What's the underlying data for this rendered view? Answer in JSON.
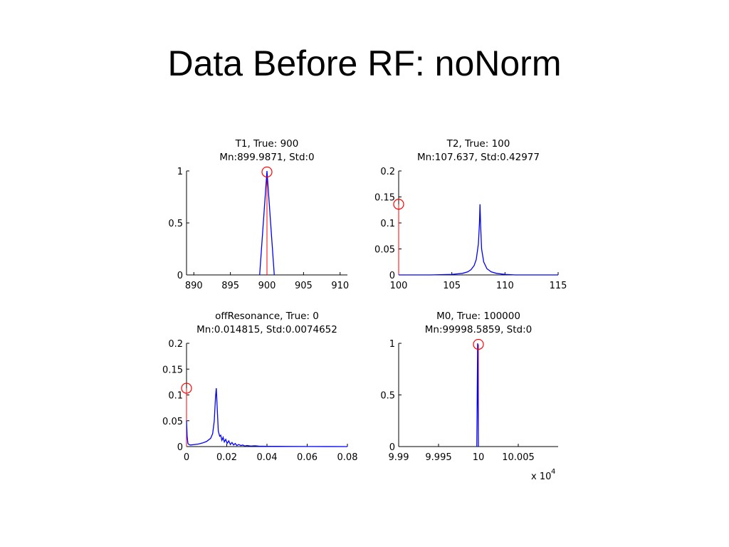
{
  "slide": {
    "title": "Data Before RF: noNorm"
  },
  "colors": {
    "histogram": "#0000ff",
    "true_value": "#ff0000",
    "axes": "#000000"
  },
  "chart_data": [
    {
      "type": "line",
      "title": "T1, True: 900",
      "subtitle": "Mn:899.9871, Std:0",
      "xlim": [
        889,
        911
      ],
      "ylim": [
        0,
        1
      ],
      "xticks": [
        890,
        895,
        900,
        905,
        910
      ],
      "xtick_labels": [
        "890",
        "895",
        "900",
        "905",
        "910"
      ],
      "yticks": [
        0,
        0.5,
        1
      ],
      "ytick_labels": [
        "0",
        "0.5",
        "1"
      ],
      "true_value": 900,
      "marker": {
        "x": 900,
        "y": 0.99
      },
      "series": [
        {
          "x": [
            899,
            900,
            901
          ],
          "y": [
            0,
            1,
            0
          ]
        }
      ],
      "multiplier": ""
    },
    {
      "type": "line",
      "title": "T2, True: 100",
      "subtitle": "Mn:107.637, Std:0.42977",
      "xlim": [
        100,
        115
      ],
      "ylim": [
        0,
        0.2
      ],
      "xticks": [
        100,
        105,
        110,
        115
      ],
      "xtick_labels": [
        "100",
        "105",
        "110",
        "115"
      ],
      "yticks": [
        0,
        0.05,
        0.1,
        0.15,
        0.2
      ],
      "ytick_labels": [
        "0",
        "0.05",
        "0.1",
        "0.15",
        "0.2"
      ],
      "true_value": 100,
      "marker": {
        "x": 100,
        "y": 0.136
      },
      "series": [
        {
          "x": [
            100,
            103,
            104,
            105,
            105.5,
            106,
            106.5,
            106.8,
            107.1,
            107.3,
            107.5,
            107.6,
            107.65,
            107.7,
            107.8,
            108,
            108.3,
            108.7,
            109.2,
            110,
            111,
            115
          ],
          "y": [
            0,
            0,
            0.0005,
            0.001,
            0.002,
            0.003,
            0.006,
            0.01,
            0.018,
            0.03,
            0.06,
            0.1,
            0.136,
            0.1,
            0.05,
            0.025,
            0.012,
            0.006,
            0.003,
            0.001,
            0,
            0
          ]
        }
      ],
      "multiplier": ""
    },
    {
      "type": "line",
      "title": "offResonance, True: 0",
      "subtitle": "Mn:0.014815, Std:0.0074652",
      "xlim": [
        0,
        0.08
      ],
      "ylim": [
        0,
        0.2
      ],
      "xticks": [
        0,
        0.02,
        0.04,
        0.06,
        0.08
      ],
      "xtick_labels": [
        "0",
        "0.02",
        "0.04",
        "0.06",
        "0.08"
      ],
      "yticks": [
        0,
        0.05,
        0.1,
        0.15,
        0.2
      ],
      "ytick_labels": [
        "0",
        "0.05",
        "0.1",
        "0.15",
        "0.2"
      ],
      "true_value": 0,
      "marker": {
        "x": 0,
        "y": 0.113
      },
      "series": [
        {
          "x": [
            0,
            0.0003,
            0.0007,
            0.0012,
            0.002,
            0.004,
            0.006,
            0.008,
            0.01,
            0.012,
            0.013,
            0.0138,
            0.0144,
            0.0148,
            0.0152,
            0.0158,
            0.0165,
            0.017,
            0.0176,
            0.0182,
            0.0188,
            0.0195,
            0.0202,
            0.021,
            0.0218,
            0.0226,
            0.0234,
            0.0242,
            0.025,
            0.026,
            0.027,
            0.028,
            0.029,
            0.03,
            0.032,
            0.034,
            0.036,
            0.04,
            0.045,
            0.05,
            0.06,
            0.07,
            0.08
          ],
          "y": [
            0.05,
            0.02,
            0.006,
            0.004,
            0.003,
            0.004,
            0.005,
            0.007,
            0.01,
            0.016,
            0.025,
            0.05,
            0.095,
            0.113,
            0.08,
            0.03,
            0.02,
            0.022,
            0.012,
            0.018,
            0.009,
            0.014,
            0.006,
            0.011,
            0.004,
            0.008,
            0.003,
            0.006,
            0.002,
            0.004,
            0.002,
            0.003,
            0.001,
            0.002,
            0.001,
            0.0015,
            0.0008,
            0.0005,
            0.0004,
            0.0003,
            0.0002,
            0.0001,
            0
          ]
        }
      ],
      "multiplier": ""
    },
    {
      "type": "line",
      "title": "M0, True: 100000",
      "subtitle": "Mn:99998.5859, Std:0",
      "xlim": [
        9.99,
        10.01
      ],
      "ylim": [
        0,
        1
      ],
      "xticks": [
        9.99,
        9.995,
        10,
        10.005
      ],
      "xtick_labels": [
        "9.99",
        "9.995",
        "10",
        "10.005"
      ],
      "yticks": [
        0,
        0.5,
        1
      ],
      "ytick_labels": [
        "0",
        "0.5",
        "1"
      ],
      "true_value": 10,
      "marker": {
        "x": 10,
        "y": 0.99
      },
      "series": [
        {
          "x": [
            9.9998,
            9.99985,
            9.9999,
            9.99995,
            10
          ],
          "y": [
            0,
            0.5,
            1,
            0.5,
            0
          ]
        }
      ],
      "multiplier": "x 10",
      "multiplier_exp": "4"
    }
  ]
}
